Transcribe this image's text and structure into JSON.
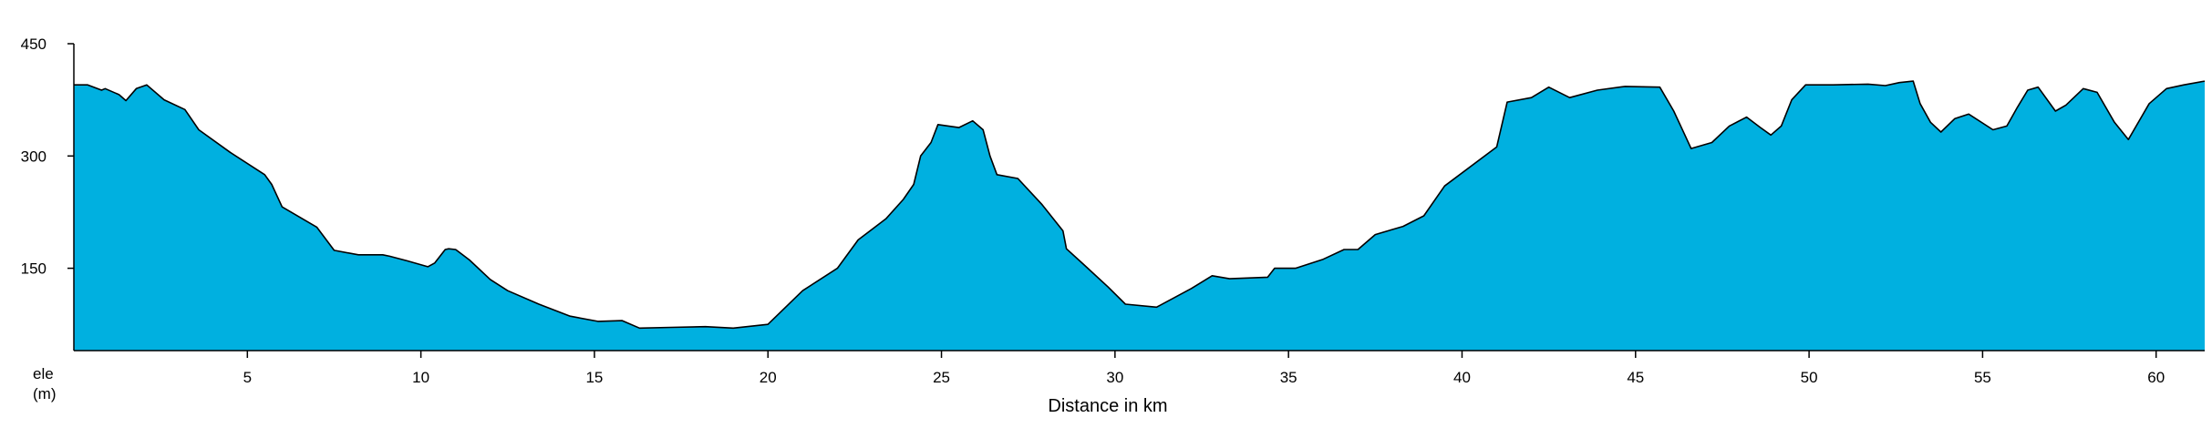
{
  "chart_data": {
    "type": "area",
    "title": "",
    "xlabel": "Distance in km",
    "ylabel": "ele",
    "ylabel_unit": "(m)",
    "xlim": [
      0,
      61.4
    ],
    "ylim": [
      40,
      450
    ],
    "xticks": [
      5,
      10,
      15,
      20,
      25,
      30,
      35,
      40,
      45,
      50,
      55,
      60
    ],
    "yticks": [
      150,
      300,
      450
    ],
    "grid": false,
    "fill_color": "#00b0e0",
    "line_color": "#000000",
    "x": [
      0,
      0.4,
      0.8,
      0.9,
      1.3,
      1.5,
      1.8,
      2.1,
      2.6,
      3.2,
      3.6,
      4.5,
      5.5,
      5.7,
      6.0,
      7.0,
      7.5,
      8.2,
      8.9,
      9.1,
      9.6,
      10.2,
      10.4,
      10.7,
      10.8,
      11.0,
      11.4,
      12.0,
      12.5,
      13.4,
      14.3,
      15.1,
      15.8,
      16.3,
      17.2,
      18.2,
      19.0,
      20.0,
      21.0,
      22.0,
      22.6,
      23.4,
      23.9,
      24.2,
      24.4,
      24.7,
      24.9,
      25.5,
      25.9,
      26.2,
      26.4,
      26.6,
      27.2,
      27.9,
      28.5,
      28.6,
      29.1,
      29.8,
      30.3,
      31.2,
      32.2,
      32.8,
      33.3,
      34.4,
      34.6,
      35.2,
      36.0,
      36.6,
      37.0,
      37.5,
      38.3,
      38.9,
      39.5,
      41.0,
      41.3,
      42.0,
      42.5,
      43.1,
      43.9,
      44.7,
      45.7,
      46.1,
      46.4,
      46.6,
      47.2,
      47.7,
      48.2,
      48.6,
      48.9,
      49.2,
      49.5,
      49.9,
      50.7,
      51.7,
      52.2,
      52.6,
      53.0,
      53.2,
      53.5,
      53.8,
      54.2,
      54.6,
      55.3,
      55.7,
      56.0,
      56.3,
      56.6,
      57.1,
      57.4,
      57.9,
      58.3,
      58.8,
      59.2,
      59.8,
      60.3,
      60.8,
      61.4
    ],
    "y": [
      395,
      395,
      388,
      390,
      382,
      374,
      390,
      395,
      375,
      362,
      335,
      305,
      275,
      262,
      232,
      205,
      174,
      168,
      168,
      166,
      160,
      152,
      157,
      175,
      176,
      175,
      161,
      135,
      120,
      102,
      86,
      79,
      80,
      70,
      71,
      72,
      70,
      75,
      120,
      150,
      188,
      216,
      242,
      262,
      300,
      318,
      342,
      338,
      347,
      335,
      300,
      275,
      270,
      235,
      200,
      176,
      155,
      125,
      102,
      98,
      123,
      140,
      136,
      138,
      150,
      150,
      162,
      175,
      175,
      195,
      206,
      220,
      260,
      312,
      372,
      378,
      392,
      378,
      388,
      393,
      392,
      360,
      330,
      310,
      318,
      340,
      352,
      338,
      328,
      340,
      375,
      395,
      395,
      396,
      394,
      398,
      400,
      370,
      345,
      332,
      350,
      356,
      335,
      340,
      365,
      388,
      392,
      360,
      368,
      390,
      385,
      345,
      322,
      370,
      390,
      395,
      400
    ]
  }
}
